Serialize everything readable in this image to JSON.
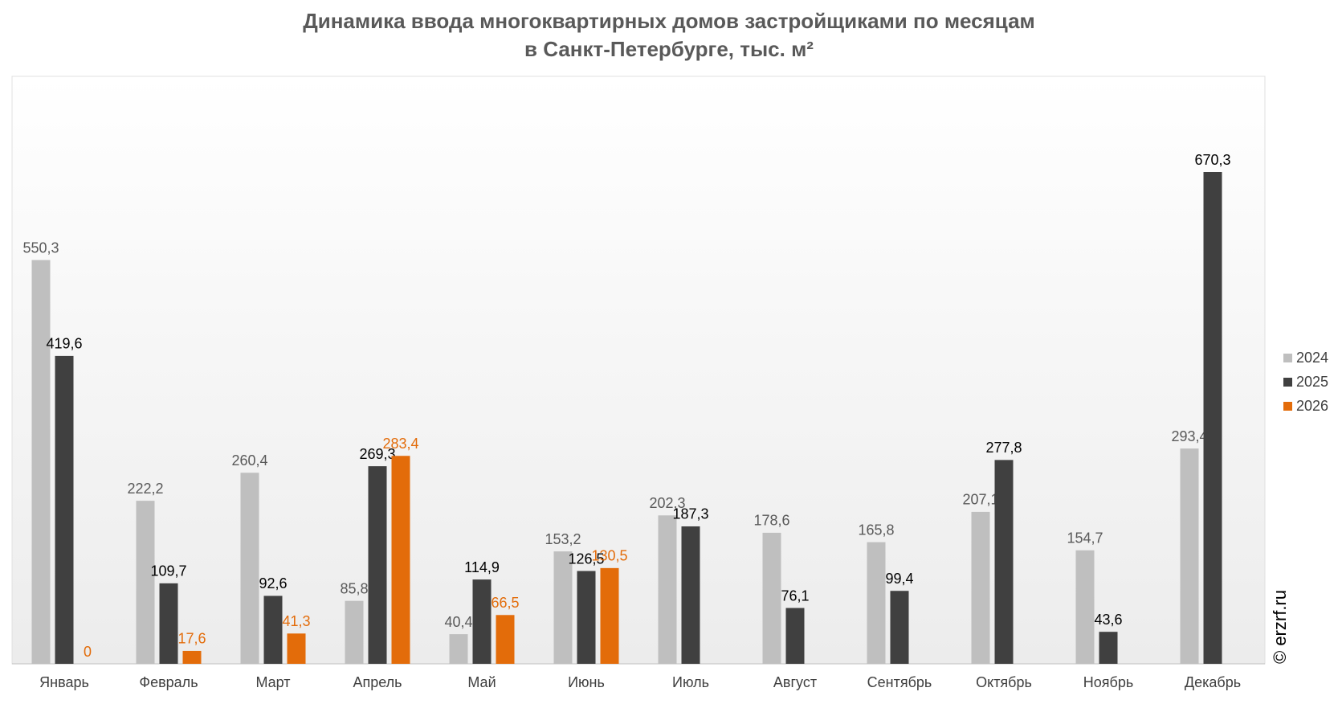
{
  "chart_data": {
    "type": "bar",
    "title": "Динамика ввода многоквартирных домов застройщиками по месяцам",
    "subtitle": "в Санкт-Петербурге, тыс. м²",
    "watermark": "© erzrf.ru",
    "categories": [
      "Январь",
      "Февраль",
      "Март",
      "Апрель",
      "Май",
      "Июнь",
      "Июль",
      "Август",
      "Сентябрь",
      "Октябрь",
      "Ноябрь",
      "Декабрь"
    ],
    "legend": "right",
    "series": [
      {
        "name": "2024",
        "color": "#bfbfbf",
        "label_color": "#595959",
        "values": [
          550.3,
          222.2,
          260.4,
          85.8,
          40.4,
          153.2,
          202.3,
          178.6,
          165.8,
          207.1,
          154.7,
          293.4
        ],
        "value_labels": [
          "550,3",
          "222,2",
          "260,4",
          "85,8",
          "40,4",
          "153,2",
          "202,3",
          "178,6",
          "165,8",
          "207,1",
          "154,7",
          "293,4"
        ]
      },
      {
        "name": "2025",
        "color": "#404040",
        "label_color": "#000000",
        "values": [
          419.6,
          109.7,
          92.6,
          269.3,
          114.9,
          126.5,
          187.3,
          76.1,
          99.4,
          277.8,
          43.6,
          670.3
        ],
        "value_labels": [
          "419,6",
          "109,7",
          "92,6",
          "269,3",
          "114,9",
          "126,5",
          "187,3",
          "76,1",
          "99,4",
          "277,8",
          "43,6",
          "670,3"
        ]
      },
      {
        "name": "2026",
        "color": "#e36c0a",
        "label_color": "#e36c0a",
        "values": [
          0,
          17.6,
          41.3,
          283.4,
          66.5,
          130.5,
          null,
          null,
          null,
          null,
          null,
          null
        ],
        "value_labels": [
          "0",
          "17,6",
          "41,3",
          "283,4",
          "66,5",
          "130,5",
          null,
          null,
          null,
          null,
          null,
          null
        ]
      }
    ]
  }
}
